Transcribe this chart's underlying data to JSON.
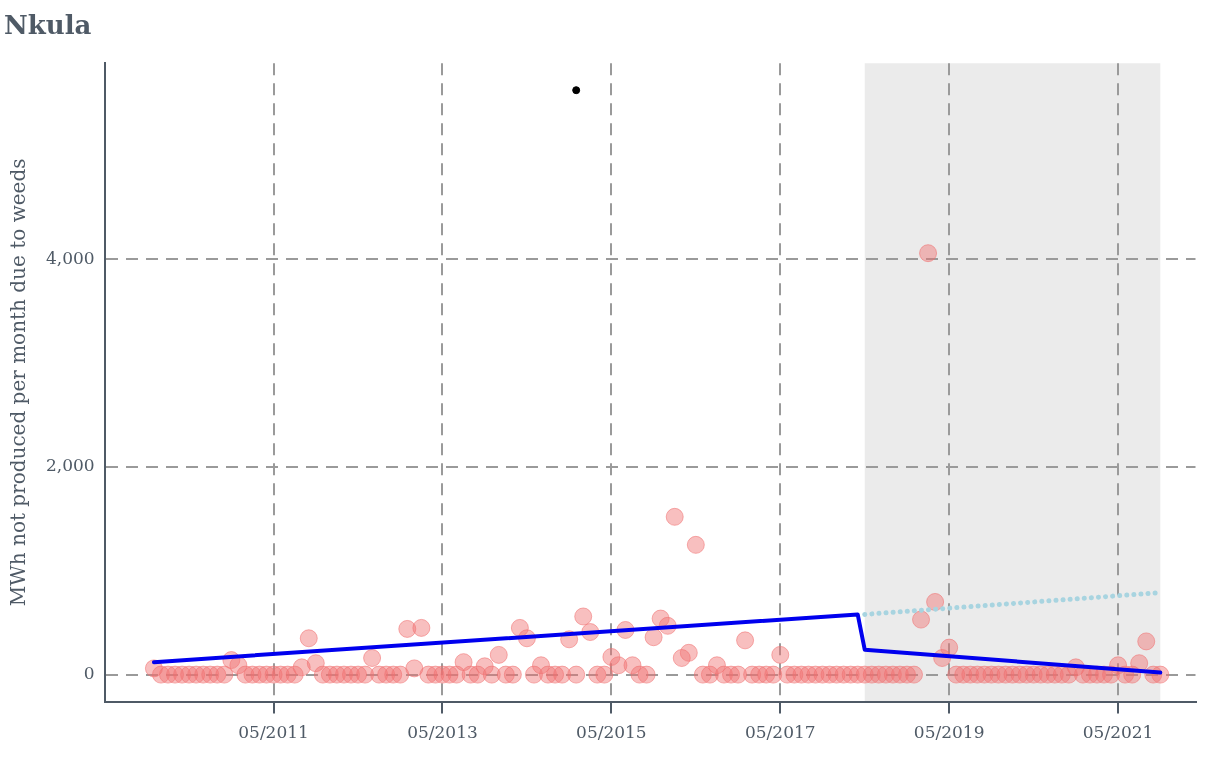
{
  "chart_data": {
    "type": "scatter",
    "title": "Nkula",
    "ylabel": "MWh not produced per month due to weeds",
    "xlim": [
      "2009-05",
      "2022-04"
    ],
    "xticks": [
      {
        "value": "2011-05",
        "label": "05/2011"
      },
      {
        "value": "2013-05",
        "label": "05/2013"
      },
      {
        "value": "2015-05",
        "label": "05/2015"
      },
      {
        "value": "2017-05",
        "label": "05/2017"
      },
      {
        "value": "2019-05",
        "label": "05/2019"
      },
      {
        "value": "2021-05",
        "label": "05/2021"
      }
    ],
    "ylim": [
      -260,
      5890
    ],
    "yticks": [
      {
        "value": 0,
        "label": "0"
      },
      {
        "value": 2000,
        "label": "2,000"
      },
      {
        "value": 4000,
        "label": "4,000"
      }
    ],
    "grid": true,
    "legend": false,
    "bands": [
      {
        "axis": "x",
        "from": "2018-05",
        "to": "2021-11",
        "color": "#ebebeb"
      }
    ],
    "series": [
      {
        "color": "#f07070",
        "marker": "circle",
        "x": [
          "2009-12",
          "2010-01",
          "2010-02",
          "2010-03",
          "2010-04",
          "2010-05",
          "2010-06",
          "2010-07",
          "2010-08",
          "2010-09",
          "2010-10",
          "2010-11",
          "2010-12",
          "2011-01",
          "2011-02",
          "2011-03",
          "2011-04",
          "2011-05",
          "2011-06",
          "2011-07",
          "2011-08",
          "2011-09",
          "2011-10",
          "2011-11",
          "2011-12",
          "2012-01",
          "2012-02",
          "2012-03",
          "2012-04",
          "2012-05",
          "2012-06",
          "2012-07",
          "2012-08",
          "2012-09",
          "2012-10",
          "2012-11",
          "2012-12",
          "2013-01",
          "2013-02",
          "2013-03",
          "2013-04",
          "2013-05",
          "2013-06",
          "2013-07",
          "2013-08",
          "2013-09",
          "2013-10",
          "2013-11",
          "2013-12",
          "2014-01",
          "2014-02",
          "2014-03",
          "2014-04",
          "2014-05",
          "2014-06",
          "2014-07",
          "2014-08",
          "2014-09",
          "2014-10",
          "2014-11",
          "2014-12",
          "2015-01",
          "2015-02",
          "2015-03",
          "2015-04",
          "2015-05",
          "2015-06",
          "2015-07",
          "2015-08",
          "2015-09",
          "2015-10",
          "2015-11",
          "2015-12",
          "2016-01",
          "2016-02",
          "2016-03",
          "2016-04",
          "2016-05",
          "2016-06",
          "2016-07",
          "2016-08",
          "2016-09",
          "2016-10",
          "2016-11",
          "2016-12",
          "2017-01",
          "2017-02",
          "2017-03",
          "2017-04",
          "2017-05",
          "2017-06",
          "2017-07",
          "2017-08",
          "2017-09",
          "2017-10",
          "2017-11",
          "2017-12",
          "2018-01",
          "2018-02",
          "2018-03",
          "2018-04",
          "2018-05",
          "2018-06",
          "2018-07",
          "2018-08",
          "2018-09",
          "2018-10",
          "2018-11",
          "2018-12",
          "2019-01",
          "2019-02",
          "2019-03",
          "2019-04",
          "2019-05",
          "2019-06",
          "2019-07",
          "2019-08",
          "2019-09",
          "2019-10",
          "2019-11",
          "2019-12",
          "2020-01",
          "2020-02",
          "2020-03",
          "2020-04",
          "2020-05",
          "2020-06",
          "2020-07",
          "2020-08",
          "2020-09",
          "2020-10",
          "2020-11",
          "2020-12",
          "2021-01",
          "2021-02",
          "2021-03",
          "2021-04",
          "2021-05",
          "2021-06",
          "2021-07",
          "2021-08",
          "2021-09",
          "2021-10",
          "2021-11"
        ],
        "values": [
          60,
          0,
          0,
          0,
          0,
          0,
          0,
          0,
          0,
          0,
          0,
          140,
          90,
          0,
          0,
          0,
          0,
          0,
          0,
          0,
          0,
          70,
          350,
          110,
          0,
          0,
          0,
          0,
          0,
          0,
          0,
          160,
          0,
          0,
          0,
          0,
          440,
          60,
          450,
          0,
          0,
          0,
          0,
          0,
          120,
          0,
          0,
          80,
          0,
          190,
          0,
          0,
          450,
          350,
          0,
          90,
          0,
          0,
          0,
          340,
          0,
          560,
          410,
          0,
          0,
          170,
          90,
          430,
          90,
          0,
          0,
          360,
          540,
          470,
          1520,
          160,
          210,
          1250,
          0,
          0,
          90,
          0,
          0,
          0,
          330,
          0,
          0,
          0,
          0,
          190,
          0,
          0,
          0,
          0,
          0,
          0,
          0,
          0,
          0,
          0,
          0,
          0,
          0,
          0,
          0,
          0,
          0,
          0,
          0,
          530,
          4060,
          700,
          160,
          260,
          0,
          0,
          0,
          0,
          0,
          0,
          0,
          0,
          0,
          0,
          0,
          0,
          0,
          0,
          0,
          0,
          0,
          70,
          0,
          0,
          0,
          0,
          0,
          90,
          0,
          0,
          110,
          320,
          0,
          0
        ]
      },
      {
        "color": "#000000",
        "marker": "circle",
        "x": [
          "2014-12"
        ],
        "values": [
          5630
        ]
      },
      {
        "type": "line",
        "color": "#0000ee",
        "marker": "none",
        "line_style": "solid",
        "x": [
          "2009-12",
          "2018-04",
          "2018-05",
          "2021-11"
        ],
        "values": [
          120,
          580,
          240,
          20
        ]
      },
      {
        "type": "line",
        "color": "#a8d4e0",
        "marker": "none",
        "line_style": "dotted",
        "x": [
          "2018-05",
          "2021-11"
        ],
        "values": [
          580,
          790
        ]
      }
    ]
  }
}
